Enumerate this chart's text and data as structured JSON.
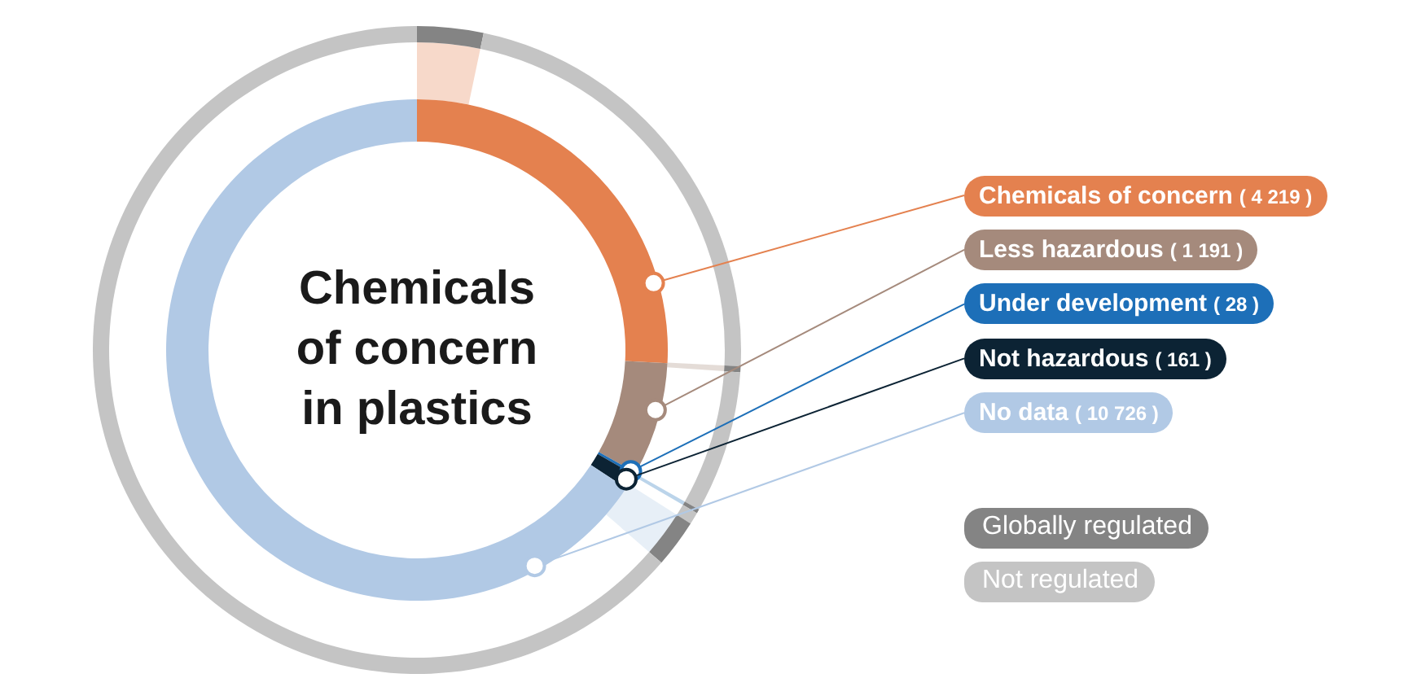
{
  "chart_data": [
    {
      "type": "donut",
      "title": "Chemicals of concern in plastics",
      "categories": [
        "Chemicals of concern",
        "Less hazardous",
        "Under development",
        "Not hazardous",
        "No data"
      ],
      "values": [
        4219,
        1191,
        28,
        161,
        10726
      ],
      "colors": [
        "#e4814f",
        "#a58a7c",
        "#1d6fb8",
        "#0c2334",
        "#b1c9e5"
      ],
      "value_labels": [
        "( 4 219 )",
        "( 1 191 )",
        "( 28 )",
        "( 161 )",
        "( 10 726 )"
      ]
    },
    {
      "type": "donut",
      "categories": [
        "Globally regulated",
        "Not regulated",
        null,
        null,
        null,
        null,
        null,
        null
      ],
      "values": [
        3.3,
        22.5,
        0.3,
        7.1,
        0.2,
        0.6,
        2.4,
        63.6
      ],
      "colors": [
        "#848484",
        "#c4c4c4",
        "#848484",
        "#c4c4c4",
        "#848484",
        "#c4c4c4",
        "#848484",
        "#c4c4c4"
      ],
      "legend": "right"
    }
  ]
}
